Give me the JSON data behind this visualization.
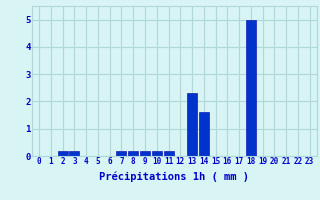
{
  "hours": [
    0,
    1,
    2,
    3,
    4,
    5,
    6,
    7,
    8,
    9,
    10,
    11,
    12,
    13,
    14,
    15,
    16,
    17,
    18,
    19,
    20,
    21,
    22,
    23
  ],
  "values": [
    0,
    0,
    0.2,
    0.2,
    0,
    0,
    0,
    0.2,
    0.2,
    0.2,
    0.2,
    0.2,
    0,
    2.3,
    1.6,
    0,
    0,
    0,
    5.0,
    0,
    0,
    0,
    0,
    0
  ],
  "bar_color": "#0033cc",
  "bar_edge_color": "#0000aa",
  "background_color": "#d8f4f4",
  "grid_color": "#b0d8d8",
  "text_color": "#0000cc",
  "xlabel": "Précipitations 1h ( mm )",
  "ylim": [
    0,
    5.5
  ],
  "yticks": [
    0,
    1,
    2,
    3,
    4,
    5
  ],
  "xlabel_fontsize": 7.5,
  "tick_fontsize": 5.5
}
